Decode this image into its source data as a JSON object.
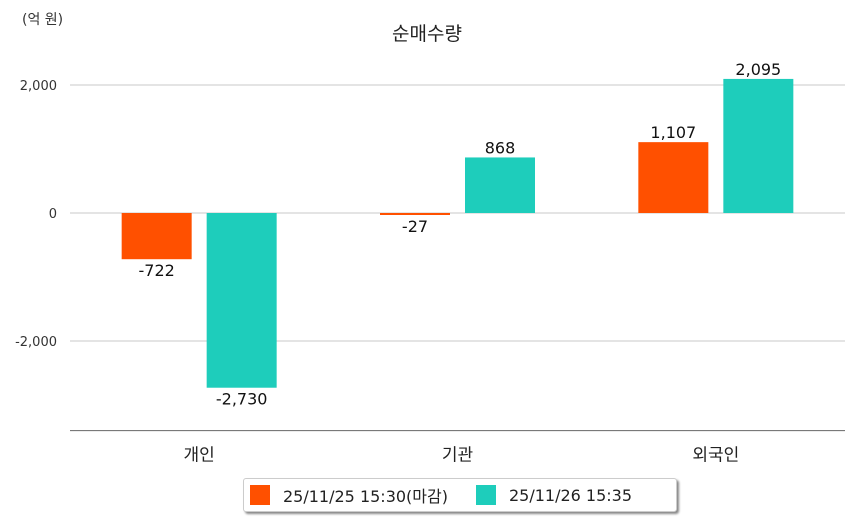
{
  "chart_data": {
    "type": "bar",
    "title": "순매수량",
    "unit_label": "(억 원)",
    "categories": [
      "개인",
      "기관",
      "외국인"
    ],
    "series": [
      {
        "name": "25/11/25 15:30(마감)",
        "color": "#ff5000",
        "values": [
          -722,
          -27,
          1107
        ],
        "labels": [
          "-722",
          "-27",
          "1,107"
        ]
      },
      {
        "name": "25/11/26 15:35",
        "color": "#1ecdbb",
        "values": [
          -2730,
          868,
          2095
        ],
        "labels": [
          "-2,730",
          "868",
          "2,095"
        ]
      }
    ],
    "yticks": [
      2000,
      0,
      -2000
    ],
    "ytick_labels": [
      "2,000",
      "0",
      "-2,000"
    ],
    "ylim": [
      -3400,
      2400
    ],
    "grid": true,
    "legend_position": "bottom"
  }
}
